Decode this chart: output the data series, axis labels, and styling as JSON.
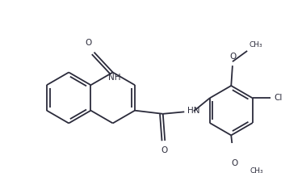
{
  "bg_color": "#ffffff",
  "line_color": "#2b2b3b",
  "line_width": 1.3,
  "font_size": 7.5,
  "figsize": [
    3.74,
    2.14
  ],
  "dpi": 100,
  "xlim": [
    0,
    374
  ],
  "ylim": [
    0,
    214
  ]
}
